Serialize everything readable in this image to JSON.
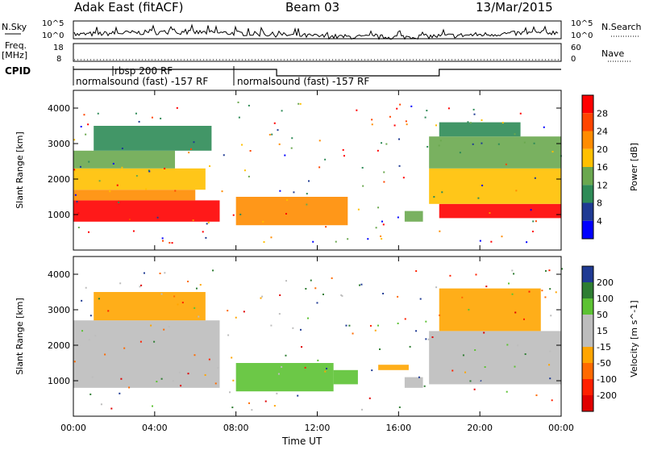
{
  "header": {
    "station": "Adak East (fitACF)",
    "beam": "Beam 03",
    "date": "13/Mar/2015"
  },
  "top_panels": {
    "nsky": {
      "label": "N.Sky",
      "ticks": [
        "10^5",
        "10^0"
      ],
      "right_label": "N.Search",
      "right_ticks": [
        "10^5",
        "10^0"
      ]
    },
    "freq": {
      "label": "Freq.",
      "unit": "[MHz]",
      "ticks": [
        "18",
        "8"
      ],
      "right_label": "Nave",
      "right_ticks": [
        "60",
        "0"
      ],
      "steps": [
        {
          "start_h": 0,
          "end_h": 10,
          "level": "high"
        },
        {
          "start_h": 10,
          "end_h": 18,
          "level": "low"
        },
        {
          "start_h": 18,
          "end_h": 24,
          "level": "high"
        }
      ]
    },
    "cpid": {
      "label": "CPID",
      "segments": [
        {
          "start_h": 0,
          "end_h": 8,
          "text": "normalsound (fast) -157 RF"
        },
        {
          "start_h": 2,
          "end_h": 8,
          "text": "rbsp 200 RF"
        },
        {
          "start_h": 8,
          "end_h": 24,
          "text": "normalsound (fast) -157 RF"
        }
      ]
    }
  },
  "chart_data": [
    {
      "type": "heatmap",
      "title": "",
      "xlabel": "Time UT",
      "ylabel": "Slant Range [km]",
      "xlim_hours": [
        0,
        24
      ],
      "ylim": [
        0,
        4500
      ],
      "x_ticks": [
        "00:00",
        "04:00",
        "08:00",
        "12:00",
        "16:00",
        "20:00",
        "00:00"
      ],
      "y_ticks": [
        "1000",
        "2000",
        "3000",
        "4000"
      ],
      "colorbar": {
        "label": "Power [dB]",
        "ticks": [
          "28",
          "24",
          "20",
          "16",
          "12",
          "8",
          "4"
        ],
        "colors": [
          "#ff0000",
          "#ff4500",
          "#ff8c00",
          "#ffc000",
          "#6aa84f",
          "#2e8b57",
          "#1f3a93",
          "#0000ff"
        ]
      },
      "regions": [
        {
          "t0": 0.0,
          "t1": 7.2,
          "r0": 800,
          "r1": 1400,
          "value": 28
        },
        {
          "t0": 0.0,
          "t1": 6.0,
          "r0": 1400,
          "r1": 1700,
          "value": 20
        },
        {
          "t0": 0.0,
          "t1": 6.5,
          "r0": 1700,
          "r1": 2300,
          "value": 16
        },
        {
          "t0": 0.0,
          "t1": 5.0,
          "r0": 2300,
          "r1": 2800,
          "value": 12
        },
        {
          "t0": 1.0,
          "t1": 6.8,
          "r0": 2800,
          "r1": 3500,
          "value": 8
        },
        {
          "t0": 8.0,
          "t1": 13.5,
          "r0": 700,
          "r1": 1500,
          "value": 20
        },
        {
          "t0": 16.3,
          "t1": 17.2,
          "r0": 800,
          "r1": 1100,
          "value": 12
        },
        {
          "t0": 18.0,
          "t1": 24.0,
          "r0": 900,
          "r1": 1300,
          "value": 28
        },
        {
          "t0": 17.5,
          "t1": 24.0,
          "r0": 1300,
          "r1": 2300,
          "value": 16
        },
        {
          "t0": 17.5,
          "t1": 24.0,
          "r0": 2300,
          "r1": 3200,
          "value": 12
        },
        {
          "t0": 18.0,
          "t1": 22.0,
          "r0": 3200,
          "r1": 3600,
          "value": 8
        }
      ]
    },
    {
      "type": "heatmap",
      "title": "",
      "xlabel": "Time UT",
      "ylabel": "Slant Range [km]",
      "xlim_hours": [
        0,
        24
      ],
      "ylim": [
        0,
        4500
      ],
      "x_ticks": [
        "00:00",
        "04:00",
        "08:00",
        "12:00",
        "16:00",
        "20:00",
        "00:00"
      ],
      "y_ticks": [
        "1000",
        "2000",
        "3000",
        "4000"
      ],
      "colorbar": {
        "label": "Velocity [m s^-1]",
        "ticks": [
          "200",
          "100",
          "50",
          "15",
          "-15",
          "-50",
          "-100",
          "-200"
        ],
        "colors": [
          "#1f3a93",
          "#2e7d32",
          "#5cc233",
          "#bdbdbd",
          "#bdbdbd",
          "#ffa500",
          "#ff6a00",
          "#ff2000",
          "#e00000"
        ]
      },
      "regions": [
        {
          "t0": 0.0,
          "t1": 7.2,
          "r0": 800,
          "r1": 2700,
          "value": 0
        },
        {
          "t0": 1.0,
          "t1": 6.5,
          "r0": 2700,
          "r1": 3500,
          "value": -30
        },
        {
          "t0": 8.0,
          "t1": 12.8,
          "r0": 700,
          "r1": 1500,
          "value": 40
        },
        {
          "t0": 12.8,
          "t1": 14.0,
          "r0": 900,
          "r1": 1300,
          "value": 45
        },
        {
          "t0": 15.0,
          "t1": 16.5,
          "r0": 1300,
          "r1": 1450,
          "value": -30
        },
        {
          "t0": 16.3,
          "t1": 17.2,
          "r0": 800,
          "r1": 1100,
          "value": 0
        },
        {
          "t0": 17.5,
          "t1": 24.0,
          "r0": 900,
          "r1": 2400,
          "value": 0
        },
        {
          "t0": 18.0,
          "t1": 23.0,
          "r0": 2400,
          "r1": 3600,
          "value": -30
        }
      ]
    }
  ]
}
